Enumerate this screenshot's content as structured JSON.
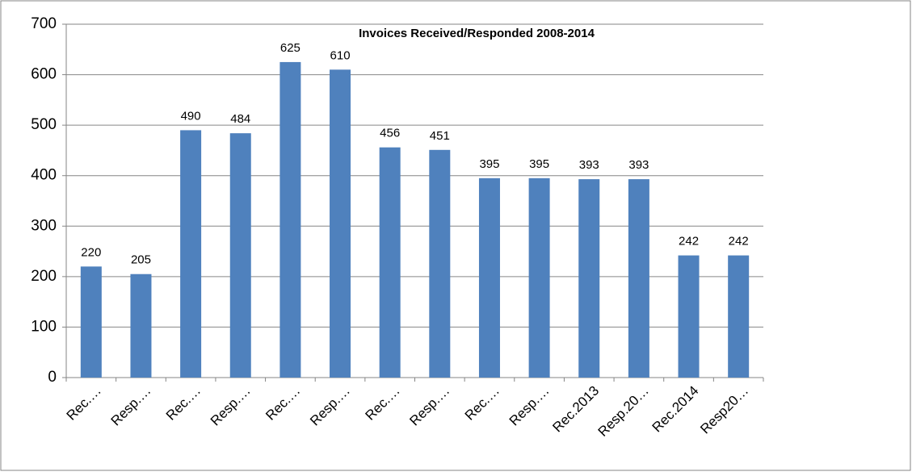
{
  "chart_data": {
    "type": "bar",
    "title": "Invoices Received/Responded 2008-2014",
    "categories": [
      "Rec.…",
      "Resp.…",
      "Rec.…",
      "Resp.…",
      "Rec.…",
      "Resp.…",
      "Rec.…",
      "Resp.…",
      "Rec.…",
      "Resp.…",
      "Rec.2013",
      "Resp.20…",
      "Rec.2014",
      "Resp20…"
    ],
    "values": [
      220,
      205,
      490,
      484,
      625,
      610,
      456,
      451,
      395,
      395,
      393,
      393,
      242,
      242
    ],
    "color": "#4f81bd",
    "ylim": [
      0,
      700
    ],
    "yticks": [
      0,
      100,
      200,
      300,
      400,
      500,
      600,
      700
    ],
    "grid": true
  }
}
